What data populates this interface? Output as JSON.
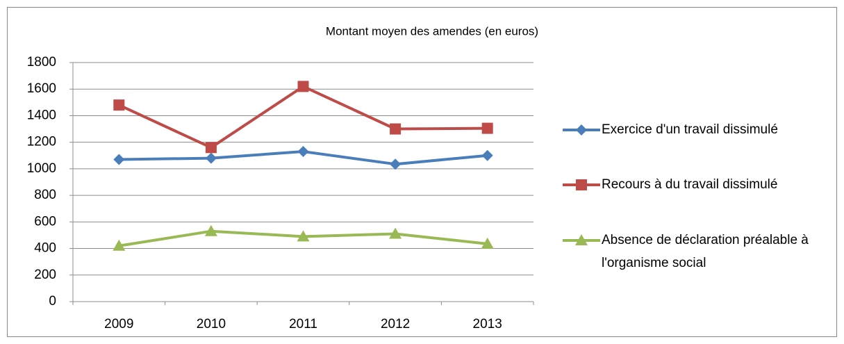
{
  "chart_data": {
    "type": "line",
    "title": "Montant moyen des amendes (en euros)",
    "categories": [
      "2009",
      "2010",
      "2011",
      "2012",
      "2013"
    ],
    "series": [
      {
        "name": "Exercice d'un travail dissimulé",
        "color": "#4a7ebb",
        "marker": "diamond",
        "values": [
          1070,
          1080,
          1130,
          1035,
          1100
        ]
      },
      {
        "name": "Recours à du travail dissimulé",
        "color": "#be4b48",
        "marker": "square",
        "values": [
          1480,
          1160,
          1620,
          1300,
          1305
        ]
      },
      {
        "name": "Absence de déclaration préalable à l'organisme social",
        "color": "#98b954",
        "marker": "triangle",
        "values": [
          420,
          530,
          490,
          510,
          435
        ]
      }
    ],
    "ylim": [
      0,
      1800
    ],
    "yticks": [
      0,
      200,
      400,
      600,
      800,
      1000,
      1200,
      1400,
      1600,
      1800
    ],
    "grid": true,
    "legend": "right"
  }
}
